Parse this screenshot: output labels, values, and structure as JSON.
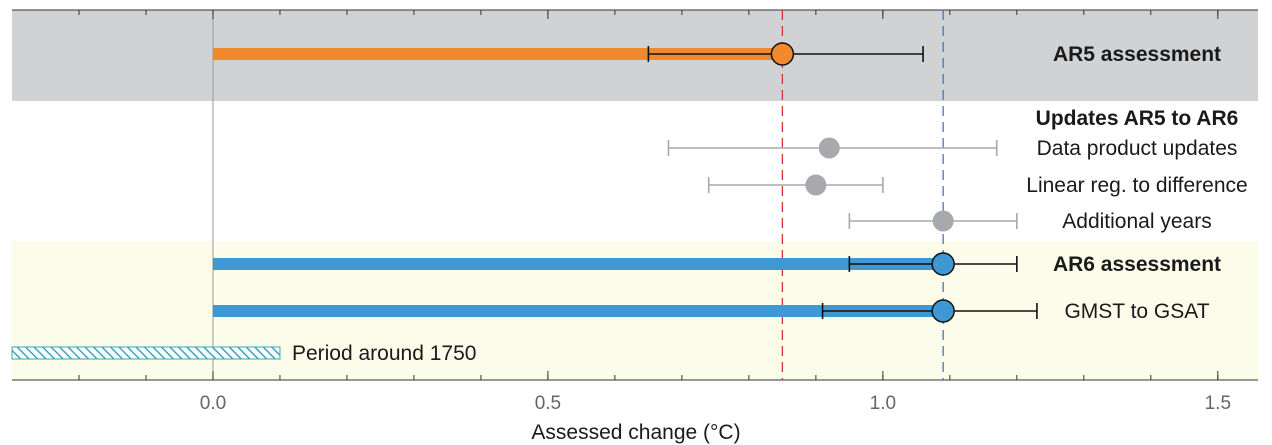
{
  "chart_data": {
    "type": "bar",
    "xlabel": "Assessed change (°C)",
    "xlim": [
      -0.3,
      1.56
    ],
    "x_ticks": [
      "0.0",
      "0.5",
      "1.0",
      "1.5"
    ],
    "x_tick_values": [
      0.0,
      0.5,
      1.0,
      1.5
    ],
    "minor_tick_step": 0.1,
    "reference_lines": [
      {
        "x": 0.85,
        "color": "#d0342c",
        "style": "dashed"
      },
      {
        "x": 1.09,
        "color": "#4f6fc0",
        "style": "dashed"
      }
    ],
    "panels": [
      {
        "name": "AR5",
        "row_start": 0,
        "row_end": 0,
        "color": "#d1d2d4"
      },
      {
        "name": "AR6",
        "row_start": 5,
        "row_end": 7,
        "color": "#fbfcea"
      }
    ],
    "rows": [
      {
        "label": "AR5 assessment",
        "bold": true,
        "bar_end": 0.85,
        "value": 0.85,
        "low": 0.65,
        "high": 1.06,
        "color": "#f08a2c",
        "style": "bar"
      },
      {
        "label": "Updates AR5 to AR6",
        "bold": true,
        "style": "heading"
      },
      {
        "label": "Data product updates",
        "bold": false,
        "value": 0.92,
        "low": 0.68,
        "high": 1.17,
        "color": "#a7a9ac",
        "style": "point"
      },
      {
        "label": "Linear reg. to difference",
        "bold": false,
        "value": 0.9,
        "low": 0.74,
        "high": 1.0,
        "color": "#a7a9ac",
        "style": "point"
      },
      {
        "label": "Additional years",
        "bold": false,
        "value": 1.09,
        "low": 0.95,
        "high": 1.2,
        "color": "#a7a9ac",
        "style": "point"
      },
      {
        "label": "AR6 assessment",
        "bold": true,
        "bar_end": 1.09,
        "value": 1.09,
        "low": 0.95,
        "high": 1.2,
        "color": "#3f97d4",
        "style": "bar"
      },
      {
        "label": "GMST to GSAT",
        "bold": false,
        "bar_end": 1.09,
        "value": 1.09,
        "low": 0.91,
        "high": 1.23,
        "color": "#3f97d4",
        "style": "bar"
      },
      {
        "label": "Period around 1750",
        "bold": false,
        "low": -0.3,
        "high": 0.1,
        "color": "#8fd3df",
        "style": "hatched"
      }
    ]
  }
}
